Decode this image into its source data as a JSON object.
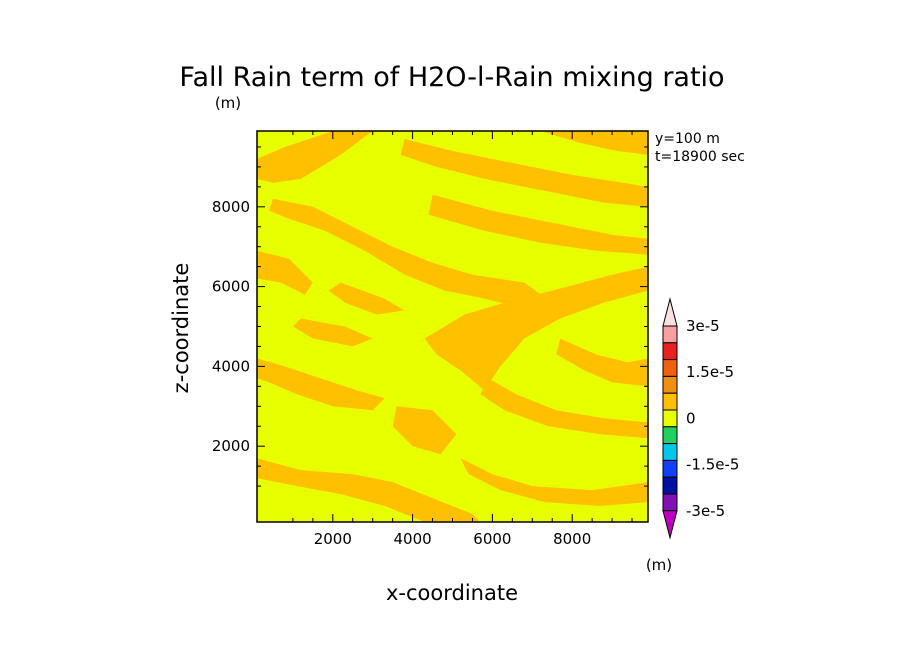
{
  "chart_data": {
    "type": "heatmap",
    "title": "Fall Rain term of H2O-l-Rain mixing ratio",
    "unit_label": "(m)",
    "xlabel": "x-coordinate",
    "ylabel": "z-coordinate",
    "annotations": [
      "y=100 m",
      "t=18900 sec"
    ],
    "xlim": [
      100,
      9900
    ],
    "ylim": [
      100,
      9900
    ],
    "x_ticks": [
      2000,
      4000,
      6000,
      8000
    ],
    "y_ticks": [
      2000,
      4000,
      6000,
      8000
    ],
    "colorbar": {
      "unit_label": "(m)",
      "tick_labels": [
        "3e-5",
        "1.5e-5",
        "0",
        "-1.5e-5",
        "-3e-5"
      ],
      "tick_values": [
        3e-05,
        1.5e-05,
        0,
        -1.5e-05,
        -3e-05
      ],
      "levels_top_to_bottom": [
        {
          "min": 3e-05,
          "color": "#ffe0e0"
        },
        {
          "min": 2.5e-05,
          "color": "#f8a0a0"
        },
        {
          "min": 2e-05,
          "color": "#e82020"
        },
        {
          "min": 1.5e-05,
          "color": "#f06010"
        },
        {
          "min": 1e-05,
          "color": "#f09010"
        },
        {
          "min": 5e-06,
          "color": "#ffc000"
        },
        {
          "min": 0,
          "color": "#e8ff00"
        },
        {
          "min": -5e-06,
          "color": "#20d060"
        },
        {
          "min": -1e-05,
          "color": "#00c8e8"
        },
        {
          "min": -1.5e-05,
          "color": "#1040ff"
        },
        {
          "min": -2e-05,
          "color": "#0010a0"
        },
        {
          "min": -2.5e-05,
          "color": "#8010b0"
        },
        {
          "max": -3e-05,
          "color": "#c000c0"
        }
      ]
    },
    "field_colors": {
      "low": "#e8ff00",
      "high": "#ffc000"
    },
    "field_bands": [
      {
        "name": "band-1",
        "level": "high",
        "points": [
          [
            100,
            9200
          ],
          [
            800,
            9500
          ],
          [
            2000,
            9900
          ],
          [
            3000,
            9900
          ],
          [
            2200,
            9300
          ],
          [
            1200,
            8700
          ],
          [
            500,
            8600
          ],
          [
            100,
            8700
          ]
        ]
      },
      {
        "name": "band-2",
        "level": "high",
        "points": [
          [
            500,
            8200
          ],
          [
            1500,
            8000
          ],
          [
            2500,
            7500
          ],
          [
            3500,
            7000
          ],
          [
            4500,
            6600
          ],
          [
            5500,
            6300
          ],
          [
            6800,
            6100
          ],
          [
            7500,
            5600
          ],
          [
            7000,
            5400
          ],
          [
            5800,
            5700
          ],
          [
            4800,
            5900
          ],
          [
            3800,
            6300
          ],
          [
            2800,
            6900
          ],
          [
            1800,
            7400
          ],
          [
            900,
            7700
          ],
          [
            400,
            7900
          ]
        ]
      },
      {
        "name": "band-3",
        "level": "high",
        "points": [
          [
            3800,
            9700
          ],
          [
            5000,
            9400
          ],
          [
            6500,
            9100
          ],
          [
            8000,
            8800
          ],
          [
            9300,
            8600
          ],
          [
            9900,
            8500
          ],
          [
            9900,
            8000
          ],
          [
            8800,
            8100
          ],
          [
            7300,
            8400
          ],
          [
            5800,
            8700
          ],
          [
            4600,
            9000
          ],
          [
            3700,
            9300
          ]
        ]
      },
      {
        "name": "band-4",
        "level": "high",
        "points": [
          [
            4500,
            8300
          ],
          [
            6000,
            7900
          ],
          [
            7500,
            7600
          ],
          [
            9000,
            7300
          ],
          [
            9900,
            7200
          ],
          [
            9900,
            6800
          ],
          [
            8600,
            6900
          ],
          [
            7200,
            7100
          ],
          [
            5800,
            7400
          ],
          [
            4400,
            7800
          ]
        ]
      },
      {
        "name": "band-5",
        "level": "high",
        "points": [
          [
            100,
            6900
          ],
          [
            900,
            6700
          ],
          [
            1500,
            6100
          ],
          [
            1300,
            5800
          ],
          [
            700,
            6100
          ],
          [
            100,
            6200
          ]
        ]
      },
      {
        "name": "band-6",
        "level": "high",
        "points": [
          [
            2200,
            6100
          ],
          [
            3300,
            5700
          ],
          [
            3800,
            5400
          ],
          [
            3100,
            5300
          ],
          [
            2300,
            5600
          ],
          [
            1900,
            5900
          ]
        ]
      },
      {
        "name": "band-7",
        "level": "high",
        "points": [
          [
            4300,
            4700
          ],
          [
            5300,
            5300
          ],
          [
            6300,
            5600
          ],
          [
            7500,
            5900
          ],
          [
            9000,
            6300
          ],
          [
            9900,
            6500
          ],
          [
            9900,
            5900
          ],
          [
            8800,
            5600
          ],
          [
            7700,
            5200
          ],
          [
            6800,
            4700
          ],
          [
            6200,
            4000
          ],
          [
            5800,
            3400
          ],
          [
            5200,
            3900
          ],
          [
            4600,
            4300
          ]
        ]
      },
      {
        "name": "band-8",
        "level": "high",
        "points": [
          [
            7700,
            4700
          ],
          [
            8600,
            4300
          ],
          [
            9400,
            4100
          ],
          [
            9900,
            4200
          ],
          [
            9900,
            3500
          ],
          [
            9000,
            3600
          ],
          [
            8300,
            3900
          ],
          [
            7600,
            4300
          ]
        ]
      },
      {
        "name": "band-9",
        "level": "high",
        "points": [
          [
            100,
            4200
          ],
          [
            800,
            4000
          ],
          [
            1700,
            3700
          ],
          [
            2600,
            3400
          ],
          [
            3300,
            3200
          ],
          [
            3000,
            2900
          ],
          [
            2000,
            3000
          ],
          [
            1100,
            3300
          ],
          [
            400,
            3600
          ],
          [
            100,
            3700
          ]
        ]
      },
      {
        "name": "band-10",
        "level": "high",
        "points": [
          [
            3600,
            3000
          ],
          [
            4500,
            2900
          ],
          [
            5100,
            2300
          ],
          [
            4700,
            1800
          ],
          [
            4000,
            2000
          ],
          [
            3500,
            2500
          ]
        ]
      },
      {
        "name": "band-11",
        "level": "high",
        "points": [
          [
            5200,
            1700
          ],
          [
            6000,
            1300
          ],
          [
            7000,
            1000
          ],
          [
            8500,
            900
          ],
          [
            9900,
            1100
          ],
          [
            9900,
            600
          ],
          [
            8700,
            500
          ],
          [
            7300,
            600
          ],
          [
            6200,
            900
          ],
          [
            5400,
            1300
          ]
        ]
      },
      {
        "name": "band-12",
        "level": "high",
        "points": [
          [
            100,
            1700
          ],
          [
            1200,
            1400
          ],
          [
            2500,
            1300
          ],
          [
            3500,
            1100
          ],
          [
            4500,
            700
          ],
          [
            5500,
            300
          ],
          [
            5700,
            100
          ],
          [
            4300,
            100
          ],
          [
            3300,
            500
          ],
          [
            2200,
            800
          ],
          [
            1100,
            1000
          ],
          [
            100,
            1200
          ]
        ]
      },
      {
        "name": "band-13",
        "level": "high",
        "points": [
          [
            5900,
            3700
          ],
          [
            6600,
            3300
          ],
          [
            7600,
            2900
          ],
          [
            8800,
            2700
          ],
          [
            9900,
            2600
          ],
          [
            9900,
            2200
          ],
          [
            8700,
            2300
          ],
          [
            7400,
            2500
          ],
          [
            6300,
            2900
          ],
          [
            5700,
            3300
          ]
        ]
      },
      {
        "name": "band-14",
        "level": "high",
        "points": [
          [
            1200,
            5200
          ],
          [
            2300,
            5000
          ],
          [
            3000,
            4700
          ],
          [
            2500,
            4500
          ],
          [
            1500,
            4700
          ],
          [
            1000,
            5000
          ]
        ]
      },
      {
        "name": "band-15",
        "level": "high",
        "points": [
          [
            7200,
            9900
          ],
          [
            8200,
            9600
          ],
          [
            9100,
            9400
          ],
          [
            9900,
            9300
          ],
          [
            9900,
            9900
          ]
        ]
      }
    ]
  }
}
